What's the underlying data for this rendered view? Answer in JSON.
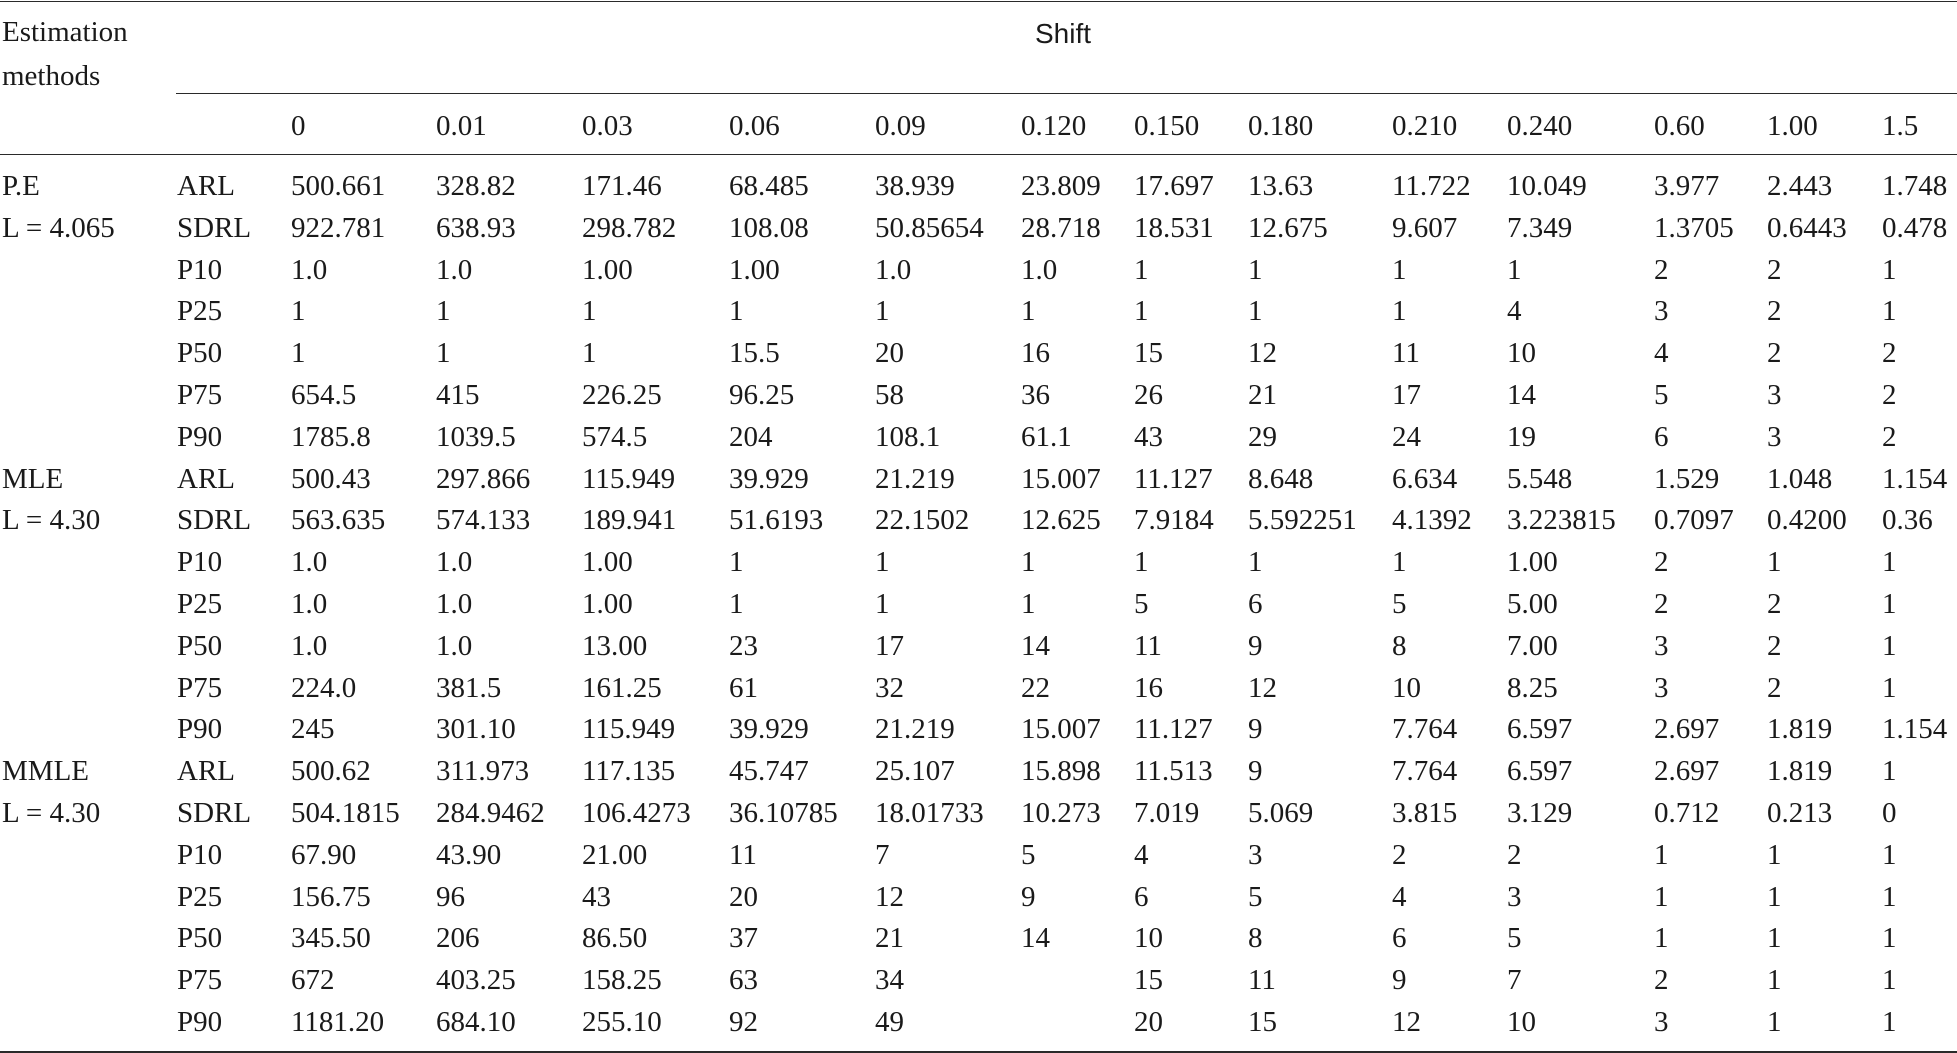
{
  "table": {
    "corner_header": [
      "Estimation",
      "methods"
    ],
    "group_header": "Shift",
    "shifts": [
      "0",
      "0.01",
      "0.03",
      "0.06",
      "0.09",
      "0.120",
      "0.150",
      "0.180",
      "0.210",
      "0.240",
      "0.60",
      "1.00",
      "1.5"
    ],
    "groups": [
      {
        "method": "P.E",
        "limit": "L = 4.065",
        "rows": [
          {
            "stat": "ARL",
            "values": [
              "500.661",
              "328.82",
              "171.46",
              "68.485",
              "38.939",
              "23.809",
              "17.697",
              "13.63",
              "11.722",
              "10.049",
              "3.977",
              "2.443",
              "1.748"
            ]
          },
          {
            "stat": "SDRL",
            "values": [
              "922.781",
              "638.93",
              "298.782",
              "108.08",
              "50.85654",
              "28.718",
              "18.531",
              "12.675",
              "9.607",
              "7.349",
              "1.3705",
              "0.6443",
              "0.478"
            ]
          },
          {
            "stat": "P10",
            "values": [
              "1.0",
              "1.0",
              "1.00",
              "1.00",
              "1.0",
              "1.0",
              "1",
              "1",
              "1",
              "1",
              "2",
              "2",
              "1"
            ]
          },
          {
            "stat": "P25",
            "values": [
              "1",
              "1",
              "1",
              "1",
              "1",
              "1",
              "1",
              "1",
              "1",
              "4",
              "3",
              "2",
              "1"
            ]
          },
          {
            "stat": "P50",
            "values": [
              "1",
              "1",
              "1",
              "15.5",
              "20",
              "16",
              "15",
              "12",
              "11",
              "10",
              "4",
              "2",
              "2"
            ]
          },
          {
            "stat": "P75",
            "values": [
              "654.5",
              "415",
              "226.25",
              "96.25",
              "58",
              "36",
              "26",
              "21",
              "17",
              "14",
              "5",
              "3",
              "2"
            ]
          },
          {
            "stat": "P90",
            "values": [
              "1785.8",
              "1039.5",
              "574.5",
              "204",
              "108.1",
              "61.1",
              "43",
              "29",
              "24",
              "19",
              "6",
              "3",
              "2"
            ]
          }
        ]
      },
      {
        "method": "MLE",
        "limit": "L = 4.30",
        "rows": [
          {
            "stat": "ARL",
            "values": [
              "500.43",
              "297.866",
              "115.949",
              "39.929",
              "21.219",
              "15.007",
              "11.127",
              "8.648",
              "6.634",
              "5.548",
              "1.529",
              "1.048",
              "1.154"
            ]
          },
          {
            "stat": "SDRL",
            "values": [
              "563.635",
              "574.133",
              "189.941",
              "51.6193",
              "22.1502",
              "12.625",
              "7.9184",
              "5.592251",
              "4.1392",
              "3.223815",
              "0.7097",
              "0.4200",
              "0.36"
            ]
          },
          {
            "stat": "P10",
            "values": [
              "1.0",
              "1.0",
              "1.00",
              "1",
              "1",
              "1",
              "1",
              "1",
              "1",
              "1.00",
              "2",
              "1",
              "1"
            ]
          },
          {
            "stat": "P25",
            "values": [
              "1.0",
              "1.0",
              "1.00",
              "1",
              "1",
              "1",
              "5",
              "6",
              "5",
              "5.00",
              "2",
              "2",
              "1"
            ]
          },
          {
            "stat": "P50",
            "values": [
              "1.0",
              "1.0",
              "13.00",
              "23",
              "17",
              "14",
              "11",
              "9",
              "8",
              "7.00",
              "3",
              "2",
              "1"
            ]
          },
          {
            "stat": "P75",
            "values": [
              "224.0",
              "381.5",
              "161.25",
              "61",
              "32",
              "22",
              "16",
              "12",
              "10",
              "8.25",
              "3",
              "2",
              "1"
            ]
          },
          {
            "stat": "P90",
            "values": [
              "245",
              "301.10",
              "115.949",
              "39.929",
              "21.219",
              "15.007",
              "11.127",
              "9",
              "7.764",
              "6.597",
              "2.697",
              "1.819",
              "1.154"
            ]
          }
        ]
      },
      {
        "method": "MMLE",
        "limit": "L = 4.30",
        "rows": [
          {
            "stat": "ARL",
            "values": [
              "500.62",
              "311.973",
              "117.135",
              "45.747",
              "25.107",
              "15.898",
              "11.513",
              "9",
              "7.764",
              "6.597",
              "2.697",
              "1.819",
              "1"
            ]
          },
          {
            "stat": "SDRL",
            "values": [
              "504.1815",
              "284.9462",
              "106.4273",
              "36.10785",
              "18.01733",
              "10.273",
              "7.019",
              "5.069",
              "3.815",
              "3.129",
              "0.712",
              "0.213",
              "0"
            ]
          },
          {
            "stat": "P10",
            "values": [
              "67.90",
              "43.90",
              "21.00",
              "11",
              "7",
              "5",
              "4",
              "3",
              "2",
              "2",
              "1",
              "1",
              "1"
            ]
          },
          {
            "stat": "P25",
            "values": [
              "156.75",
              "96",
              "43",
              "20",
              "12",
              "9",
              "6",
              "5",
              "4",
              "3",
              "1",
              "1",
              "1"
            ]
          },
          {
            "stat": "P50",
            "values": [
              "345.50",
              "206",
              "86.50",
              "37",
              "21",
              "14",
              "10",
              "8",
              "6",
              "5",
              "1",
              "1",
              "1"
            ]
          },
          {
            "stat": "P75",
            "values": [
              "672",
              "403.25",
              "158.25",
              "63",
              "34",
              "",
              "15",
              "11",
              "9",
              "7",
              "2",
              "1",
              "1"
            ]
          },
          {
            "stat": "P90",
            "values": [
              "1181.20",
              "684.10",
              "255.10",
              "92",
              "49",
              "",
              "20",
              "15",
              "12",
              "10",
              "3",
              "1",
              "1"
            ]
          }
        ]
      }
    ]
  }
}
